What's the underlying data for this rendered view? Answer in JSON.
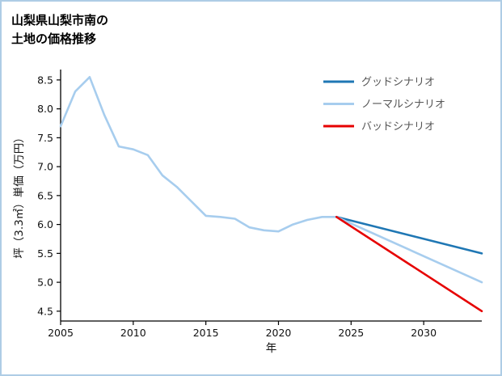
{
  "header": {
    "title_line1": "山梨県山梨市南の",
    "title_line2": "土地の価格推移"
  },
  "chart_data": {
    "type": "line",
    "title": "山梨県山梨市南の土地の価格推移",
    "xlabel": "年",
    "ylabel": "坪（3.3㎡）単価（万円）",
    "xlim": [
      2005,
      2034
    ],
    "ylim": [
      4.33,
      8.68
    ],
    "xticks": [
      2005,
      2010,
      2015,
      2020,
      2025,
      2030
    ],
    "yticks": [
      4.5,
      5.0,
      5.5,
      6.0,
      6.5,
      7.0,
      7.5,
      8.0,
      8.5
    ],
    "grid": false,
    "legend_position": "upper right",
    "series": [
      {
        "name": "history",
        "color": "#a7cdee",
        "x": [
          2005,
          2006,
          2007,
          2008,
          2009,
          2010,
          2011,
          2012,
          2013,
          2014,
          2015,
          2016,
          2017,
          2018,
          2019,
          2020,
          2021,
          2022,
          2023,
          2024
        ],
        "y": [
          7.7,
          8.3,
          8.55,
          7.9,
          7.35,
          7.3,
          7.2,
          6.85,
          6.65,
          6.4,
          6.15,
          6.13,
          6.1,
          5.95,
          5.9,
          5.88,
          6.0,
          6.08,
          6.13,
          6.13
        ]
      },
      {
        "name": "グッドシナリオ",
        "color": "#1f77b4",
        "x": [
          2024,
          2034
        ],
        "y": [
          6.13,
          5.5
        ]
      },
      {
        "name": "ノーマルシナリオ",
        "color": "#a7cdee",
        "x": [
          2024,
          2034
        ],
        "y": [
          6.13,
          5.0
        ]
      },
      {
        "name": "バッドシナリオ",
        "color": "#e60000",
        "x": [
          2024,
          2034
        ],
        "y": [
          6.13,
          4.5
        ]
      }
    ],
    "legend": [
      {
        "label": "グッドシナリオ",
        "color": "#1f77b4"
      },
      {
        "label": "ノーマルシナリオ",
        "color": "#a7cdee"
      },
      {
        "label": "バッドシナリオ",
        "color": "#e60000"
      }
    ]
  }
}
